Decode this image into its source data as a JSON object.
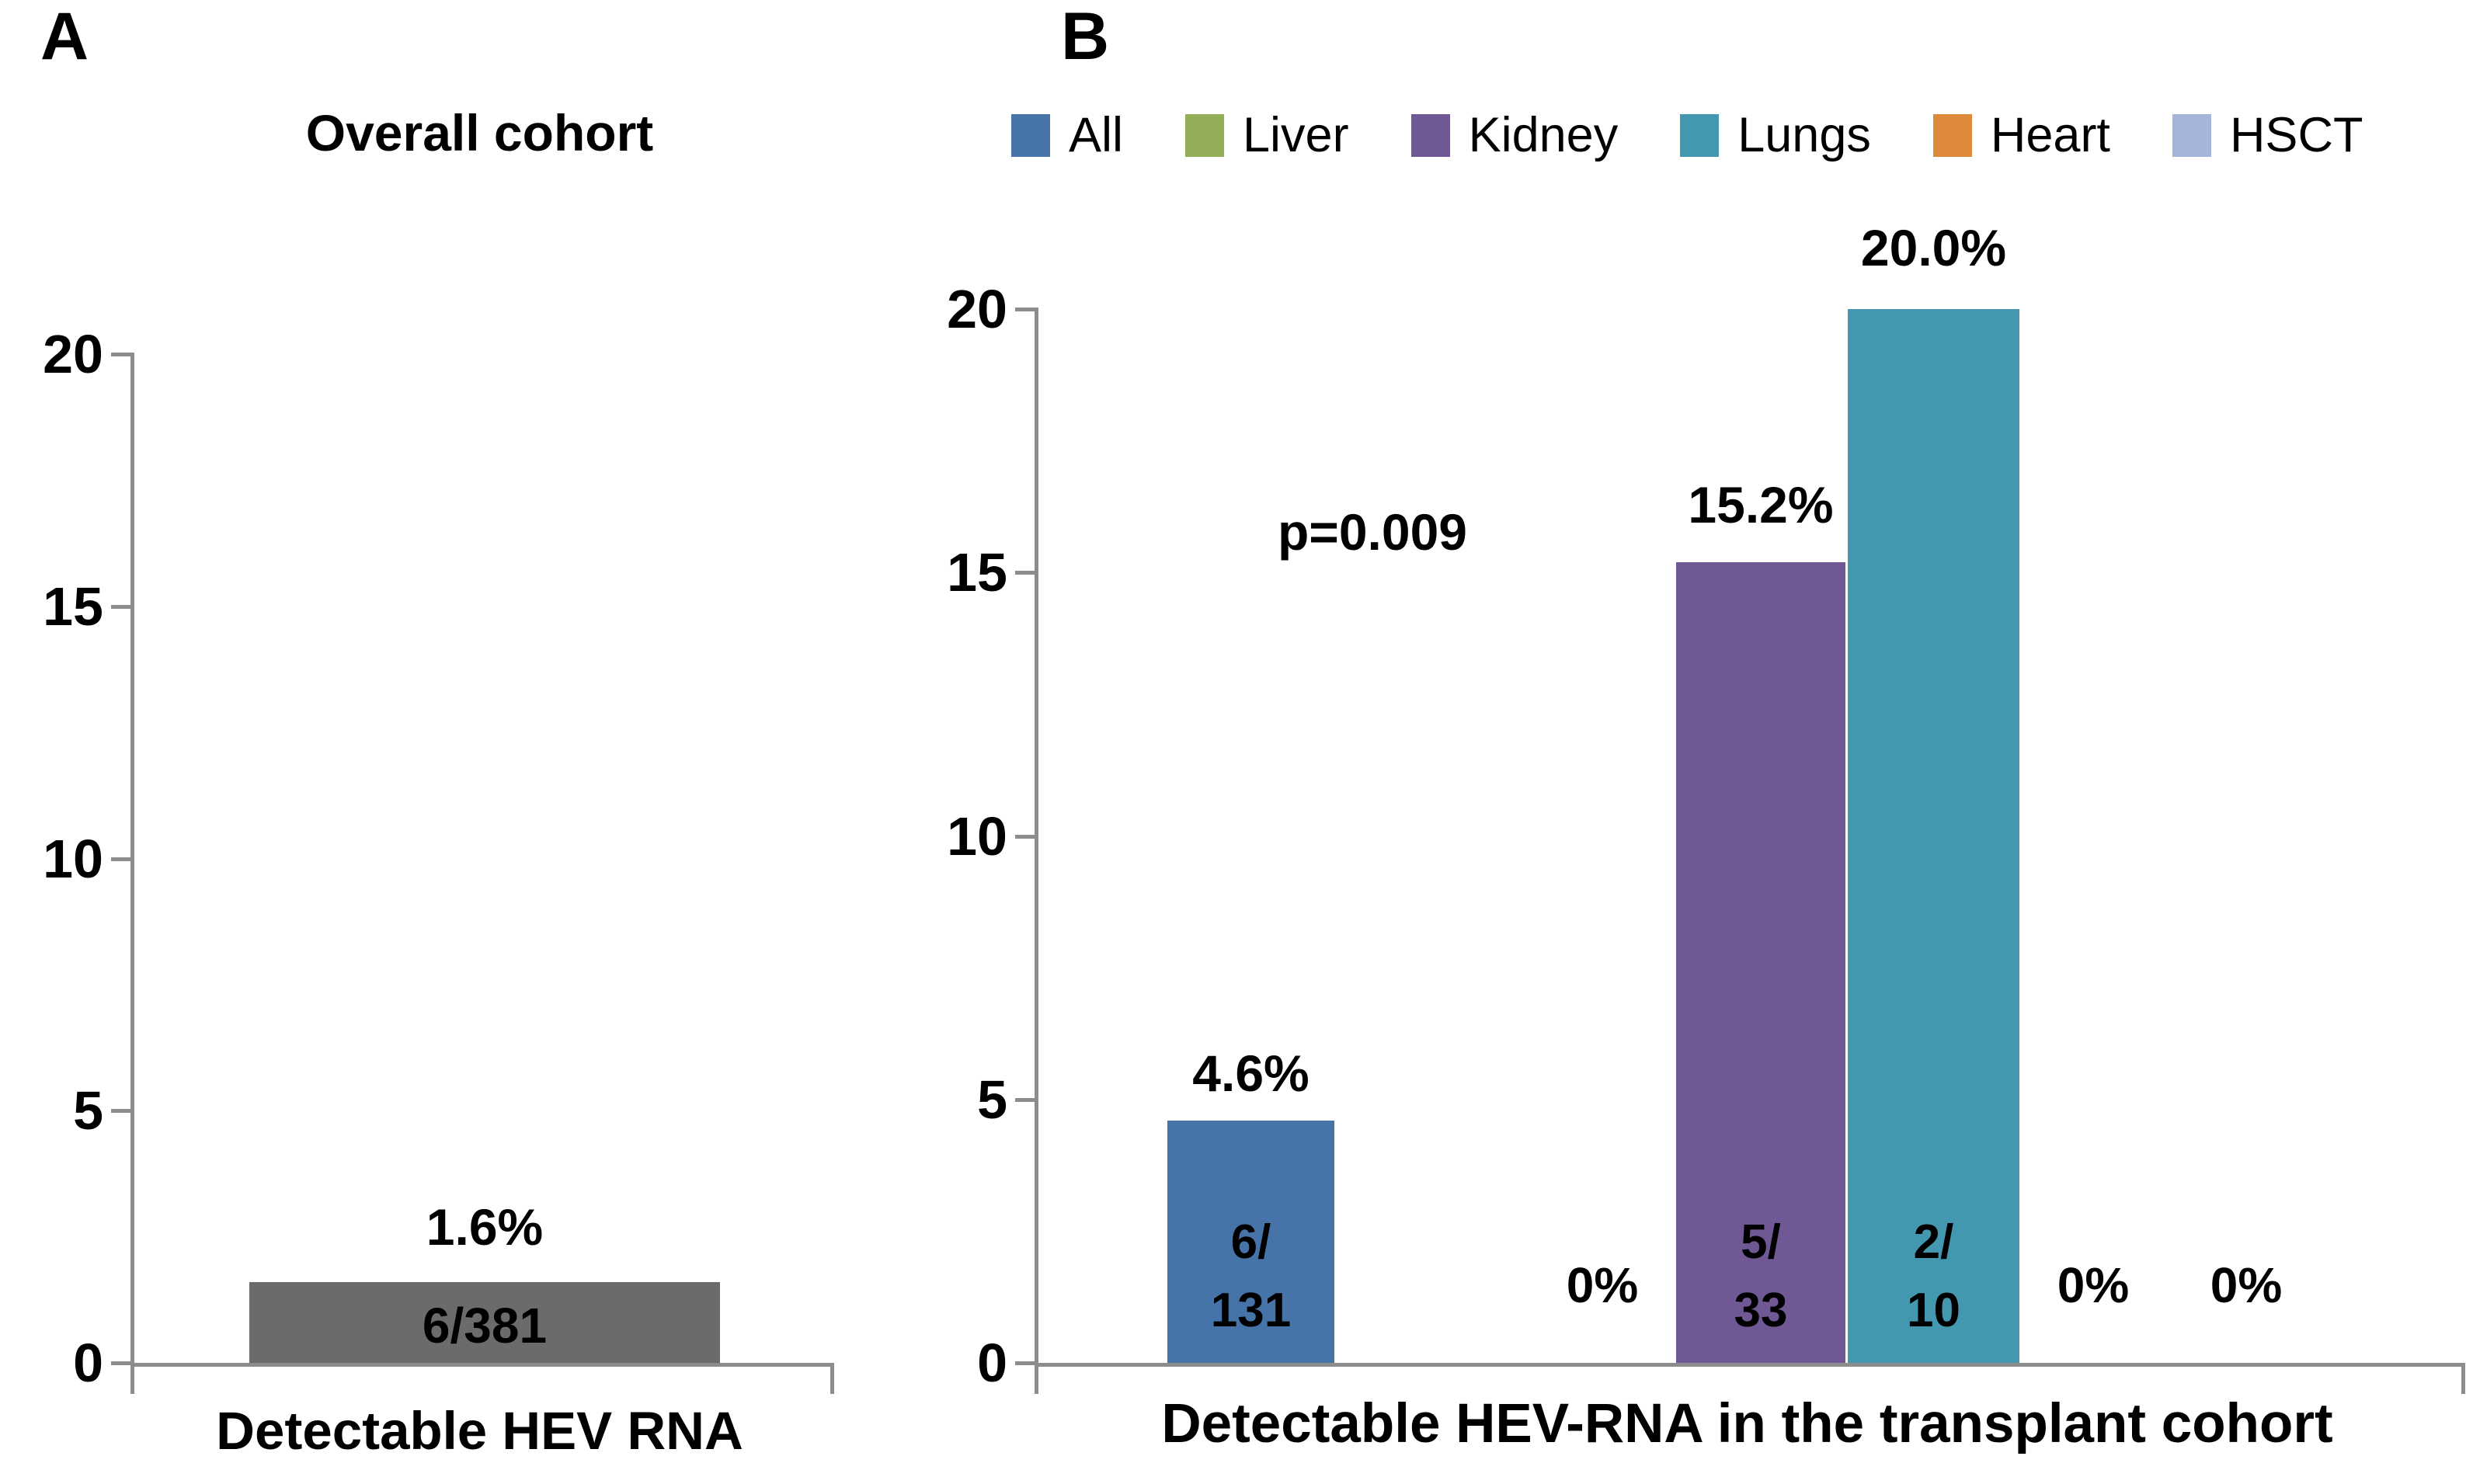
{
  "panel_a": {
    "panel_label": "A",
    "title": "Overall cohort",
    "x_axis_label": "Detectable HEV RNA",
    "y_max": 20,
    "y_ticks": [
      "20",
      "15",
      "10",
      "5",
      "0"
    ],
    "bar": {
      "value": 1.6,
      "pct_label": "1.6%",
      "fraction_label": "6/381",
      "color": "#6b6b6b"
    }
  },
  "panel_b": {
    "panel_label": "B",
    "x_axis_label": "Detectable HEV-RNA in the transplant cohort",
    "annotation": "p=0.009",
    "y_max": 20,
    "y_ticks": [
      "20",
      "15",
      "10",
      "5",
      "0"
    ],
    "legend": [
      {
        "label": "All",
        "color": "#4674a8"
      },
      {
        "label": "Liver",
        "color": "#92ae56"
      },
      {
        "label": "Kidney",
        "color": "#6f5894"
      },
      {
        "label": "Lungs",
        "color": "#4398b0"
      },
      {
        "label": "Heart",
        "color": "#dd8a3d"
      },
      {
        "label": "HSCT",
        "color": "#a4b4da"
      }
    ],
    "bars": {
      "all": {
        "value": 4.6,
        "pct_label": "4.6%",
        "fraction_line1": "6/",
        "fraction_line2": "131",
        "color": "#4674a8"
      },
      "liver": {
        "value": 0,
        "pct_label": "0%"
      },
      "kidney": {
        "value": 15.2,
        "pct_label": "15.2%",
        "fraction_line1": "5/",
        "fraction_line2": "33",
        "color": "#6f5894"
      },
      "lungs": {
        "value": 20.0,
        "pct_label": "20.0%",
        "fraction_line1": "2/",
        "fraction_line2": "10",
        "color": "#4398b0"
      },
      "heart": {
        "value": 0,
        "pct_label": "0%"
      },
      "hsct": {
        "value": 0,
        "pct_label": "0%"
      }
    }
  },
  "chart_data": [
    {
      "type": "bar",
      "panel": "A",
      "title": "Overall cohort",
      "xlabel": "Detectable HEV RNA",
      "ylabel": "",
      "categories": [
        "Detectable HEV RNA"
      ],
      "values": [
        1.6
      ],
      "data_labels": [
        {
          "percent": "1.6%",
          "fraction": "6/381"
        }
      ],
      "ylim": [
        0,
        20
      ],
      "yticks": [
        0,
        5,
        10,
        15,
        20
      ],
      "grid": false,
      "bar_color": "#6b6b6b"
    },
    {
      "type": "bar",
      "panel": "B",
      "title": "",
      "xlabel": "Detectable HEV-RNA in the transplant cohort",
      "ylabel": "",
      "categories": [
        "All",
        "Liver",
        "Kidney",
        "Lungs",
        "Heart",
        "HSCT"
      ],
      "values": [
        4.6,
        0,
        15.2,
        20.0,
        0,
        0
      ],
      "data_labels": [
        {
          "percent": "4.6%",
          "fraction": "6/131"
        },
        {
          "percent": "0%",
          "fraction": null
        },
        {
          "percent": "15.2%",
          "fraction": "5/33"
        },
        {
          "percent": "20.0%",
          "fraction": "2/10"
        },
        {
          "percent": "0%",
          "fraction": null
        },
        {
          "percent": "0%",
          "fraction": null
        }
      ],
      "annotation": "p=0.009",
      "ylim": [
        0,
        20
      ],
      "yticks": [
        0,
        5,
        10,
        15,
        20
      ],
      "grid": false,
      "legend_position": "top",
      "series_colors": [
        "#4674a8",
        "#92ae56",
        "#6f5894",
        "#4398b0",
        "#dd8a3d",
        "#a4b4da"
      ]
    }
  ]
}
